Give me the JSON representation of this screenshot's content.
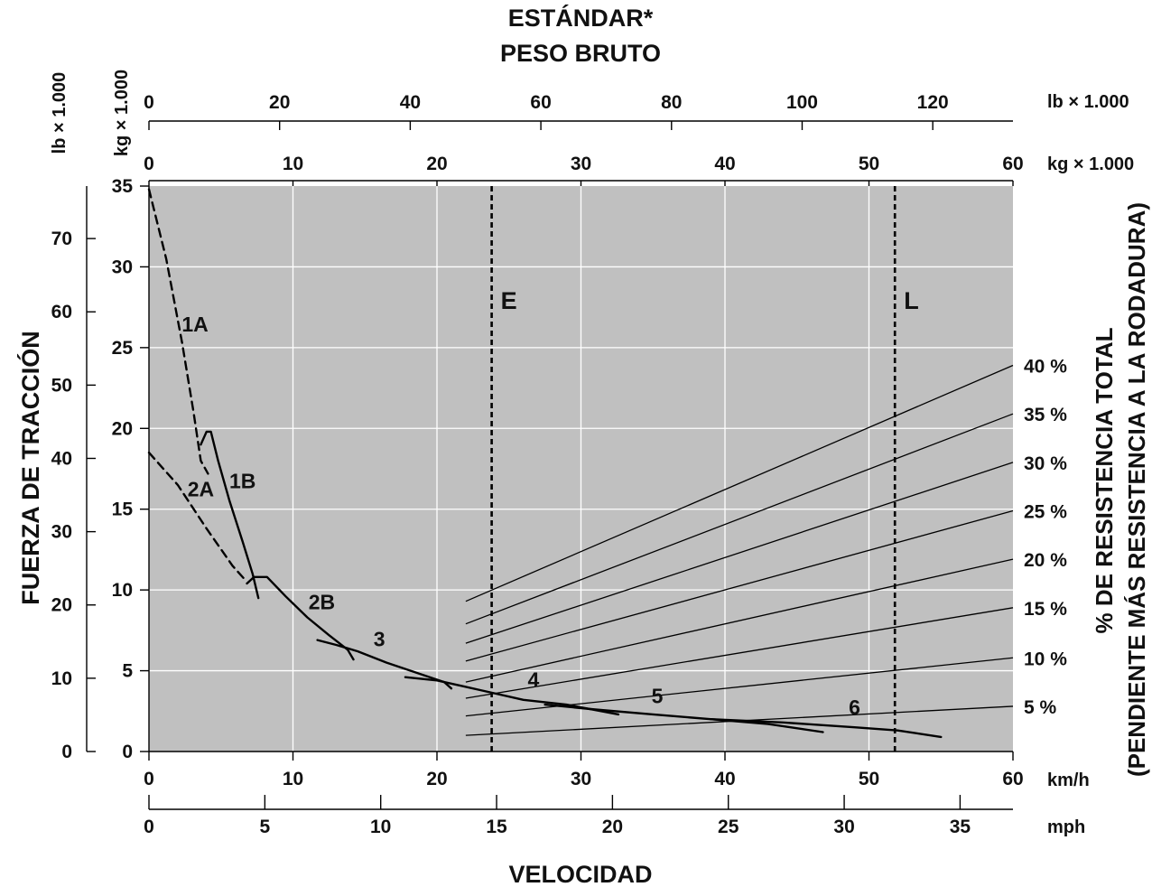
{
  "chart_data": {
    "type": "line",
    "title_lines": [
      "ESTÁNDAR*",
      "PESO BRUTO"
    ],
    "xlabel": "VELOCIDAD",
    "ylabel": "FUERZA DE TRACCIÓN",
    "right_label_lines": [
      "% DE RESISTENCIA TOTAL",
      "(PENDIENTE MÁS RESISTENCIA A LA RODADURA)"
    ],
    "x_kmh": {
      "unit": "km/h",
      "range": [
        0,
        60
      ],
      "ticks": [
        0,
        10,
        20,
        30,
        40,
        50,
        60
      ]
    },
    "x_mph": {
      "unit": "mph",
      "ticks": [
        0,
        5,
        10,
        15,
        20,
        25,
        30,
        35
      ]
    },
    "y_kg": {
      "unit": "kg × 1.000",
      "range": [
        0,
        35
      ],
      "ticks": [
        0,
        5,
        10,
        15,
        20,
        25,
        30,
        35
      ]
    },
    "y_lb": {
      "unit": "lb × 1.000",
      "ticks": [
        0,
        10,
        20,
        30,
        40,
        50,
        60,
        70
      ]
    },
    "top_kg": {
      "unit": "kg × 1.000",
      "range": [
        0,
        60
      ],
      "ticks": [
        0,
        10,
        20,
        30,
        40,
        50,
        60
      ]
    },
    "top_lb": {
      "unit": "lb × 1.000",
      "ticks": [
        0,
        20,
        40,
        60,
        80,
        100,
        120
      ]
    },
    "colors": {
      "plot_bg": "#c0c0c0",
      "grid": "#ffffff",
      "line": "#000000"
    },
    "grid": true,
    "weight_markers": [
      {
        "name": "E",
        "gross_weight_kg1000": 23.8
      },
      {
        "name": "L",
        "gross_weight_kg1000": 51.8
      }
    ],
    "gear_curves": [
      {
        "name": "1A",
        "style": "dashed",
        "label_at": [
          3.2,
          26.0
        ],
        "points": [
          [
            0,
            34.8
          ],
          [
            1.2,
            30.5
          ],
          [
            2.3,
            25.3
          ],
          [
            3.1,
            21.0
          ],
          [
            3.6,
            18.0
          ],
          [
            4.1,
            17.2
          ]
        ]
      },
      {
        "name": "1B",
        "style": "solid",
        "label_at": [
          6.5,
          16.3
        ],
        "points": [
          [
            3.6,
            19.0
          ],
          [
            4.0,
            19.8
          ],
          [
            4.3,
            19.8
          ],
          [
            4.8,
            18.0
          ],
          [
            5.6,
            15.5
          ],
          [
            6.5,
            13.0
          ],
          [
            7.2,
            11.0
          ],
          [
            7.6,
            9.5
          ]
        ]
      },
      {
        "name": "2A",
        "style": "dashed",
        "label_at": [
          3.6,
          15.8
        ],
        "points": [
          [
            0,
            18.5
          ],
          [
            2.0,
            16.5
          ],
          [
            4.0,
            13.8
          ],
          [
            5.8,
            11.5
          ],
          [
            6.7,
            10.6
          ]
        ]
      },
      {
        "name": "2B",
        "style": "solid",
        "label_at": [
          12.0,
          8.8
        ],
        "points": [
          [
            6.8,
            10.4
          ],
          [
            7.3,
            10.8
          ],
          [
            8.2,
            10.8
          ],
          [
            9.5,
            9.6
          ],
          [
            11.0,
            8.3
          ],
          [
            12.5,
            7.2
          ],
          [
            13.8,
            6.3
          ],
          [
            14.2,
            5.7
          ]
        ]
      },
      {
        "name": "3",
        "style": "solid",
        "label_at": [
          16.0,
          6.5
        ],
        "points": [
          [
            11.7,
            6.9
          ],
          [
            13.0,
            6.6
          ],
          [
            14.5,
            6.2
          ],
          [
            16.5,
            5.5
          ],
          [
            18.5,
            4.9
          ],
          [
            20.5,
            4.3
          ],
          [
            21.0,
            3.9
          ]
        ]
      },
      {
        "name": "4",
        "style": "solid",
        "label_at": [
          26.7,
          4.0
        ],
        "points": [
          [
            17.8,
            4.6
          ],
          [
            20.0,
            4.4
          ],
          [
            23.0,
            3.8
          ],
          [
            26.0,
            3.2
          ],
          [
            29.0,
            2.9
          ],
          [
            32.6,
            2.3
          ]
        ]
      },
      {
        "name": "5",
        "style": "solid",
        "label_at": [
          35.3,
          3.0
        ],
        "points": [
          [
            27.5,
            2.9
          ],
          [
            31.0,
            2.6
          ],
          [
            35.0,
            2.3
          ],
          [
            39.0,
            2.0
          ],
          [
            43.0,
            1.7
          ],
          [
            46.8,
            1.2
          ]
        ]
      },
      {
        "name": "6",
        "style": "solid",
        "label_at": [
          49.0,
          2.3
        ],
        "points": [
          [
            39.0,
            2.0
          ],
          [
            44.0,
            1.8
          ],
          [
            49.0,
            1.5
          ],
          [
            52.0,
            1.3
          ],
          [
            55.0,
            0.9
          ]
        ]
      }
    ],
    "resistance_lines": [
      {
        "name": "40 %",
        "from": [
          22.0,
          9.3
        ],
        "to": [
          60.0,
          23.9
        ]
      },
      {
        "name": "35 %",
        "from": [
          22.0,
          7.9
        ],
        "to": [
          60.0,
          20.9
        ]
      },
      {
        "name": "30 %",
        "from": [
          22.0,
          6.7
        ],
        "to": [
          60.0,
          17.9
        ]
      },
      {
        "name": "25 %",
        "from": [
          22.0,
          5.6
        ],
        "to": [
          60.0,
          14.9
        ]
      },
      {
        "name": "20 %",
        "from": [
          22.0,
          4.3
        ],
        "to": [
          60.0,
          11.9
        ]
      },
      {
        "name": "15 %",
        "from": [
          22.0,
          3.3
        ],
        "to": [
          60.0,
          8.9
        ]
      },
      {
        "name": "10 %",
        "from": [
          22.0,
          2.2
        ],
        "to": [
          60.0,
          5.8
        ]
      },
      {
        "name": "5 %",
        "from": [
          22.0,
          1.0
        ],
        "to": [
          60.0,
          2.8
        ]
      }
    ]
  }
}
